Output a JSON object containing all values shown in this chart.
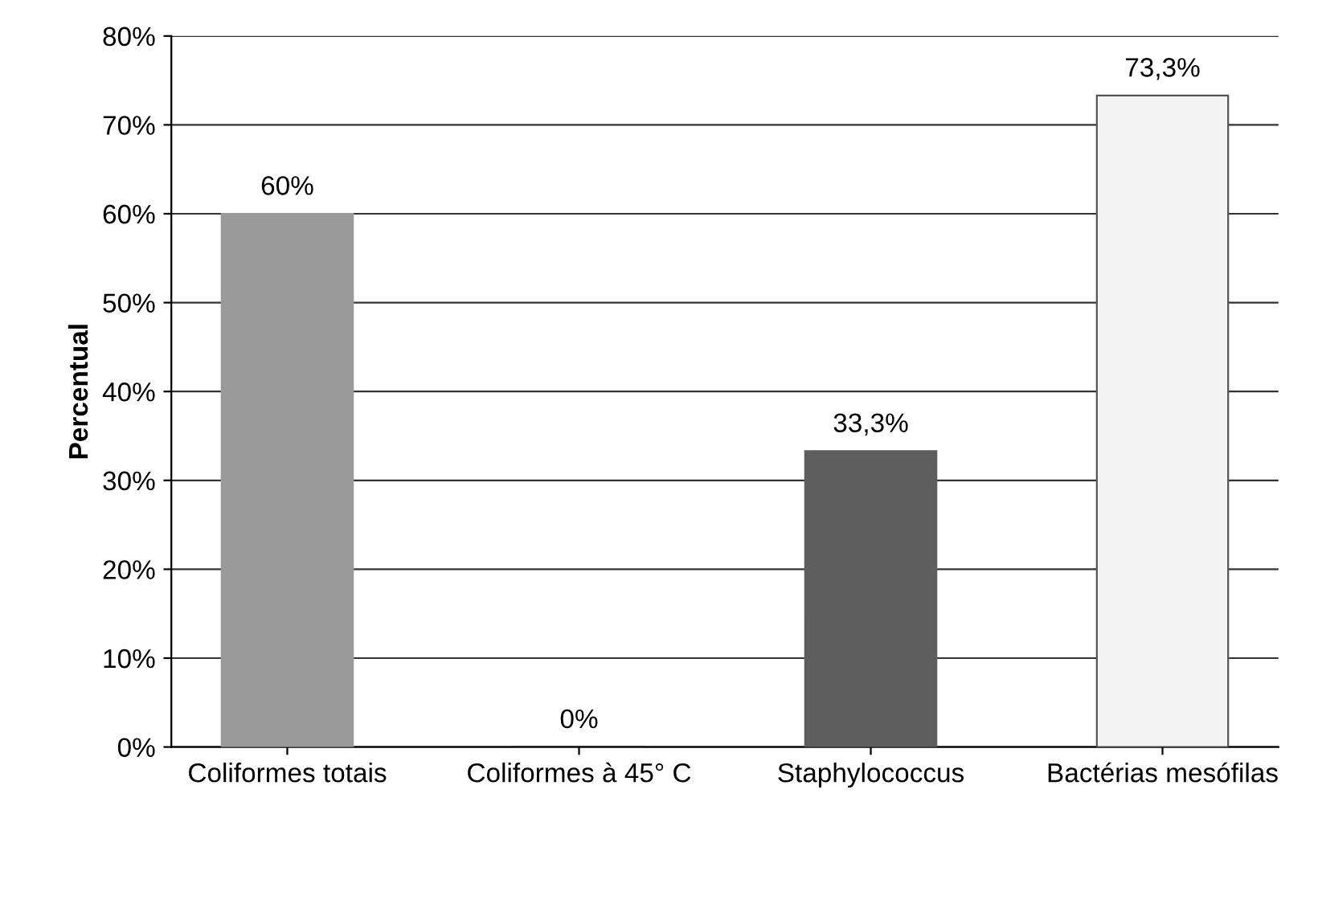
{
  "chart_data": {
    "type": "bar",
    "ylabel": "Percentual",
    "categories": [
      "Coliformes totais",
      "Coliformes à 45° C",
      "Staphylococcus",
      "Bactérias mesófilas"
    ],
    "values": [
      60,
      0,
      33.3,
      73.3
    ],
    "colors": [
      "#9a9a9a",
      "#1e1e1e",
      "#5e5e5e",
      "#f4f4f4"
    ],
    "value_labels": [
      "60%",
      "0%",
      "33,3%",
      "73,3%"
    ],
    "ylim": [
      0,
      80
    ],
    "yticks": [
      {
        "value": 0,
        "label": "0%"
      },
      {
        "value": 10,
        "label": "10%"
      },
      {
        "value": 20,
        "label": "20%"
      },
      {
        "value": 30,
        "label": "30%"
      },
      {
        "value": 40,
        "label": "40%"
      },
      {
        "value": 50,
        "label": "50%"
      },
      {
        "value": 60,
        "label": "60%"
      },
      {
        "value": 70,
        "label": "70%"
      },
      {
        "value": 80,
        "label": "80%"
      }
    ],
    "grid": "y",
    "legend": false
  }
}
